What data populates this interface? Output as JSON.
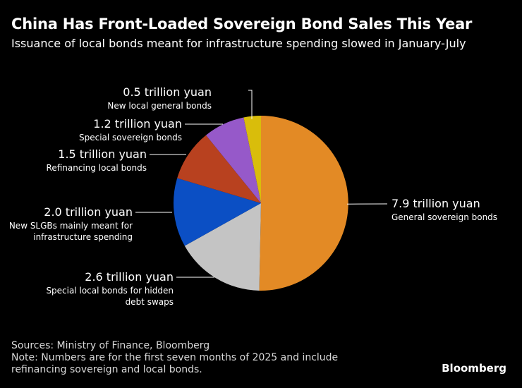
{
  "header": {
    "title": "China Has Front-Loaded Sovereign Bond Sales This Year",
    "subtitle": "Issuance of local bonds meant for infrastructure spending slowed in January-July"
  },
  "chart_data": {
    "type": "pie",
    "title": "China Has Front-Loaded Sovereign Bond Sales This Year",
    "subtitle": "Issuance of local bonds meant for infrastructure spending slowed in January-July",
    "unit": "trillion yuan",
    "slices": [
      {
        "value": 7.9,
        "value_label": "7.9 trillion yuan",
        "label": [
          "General sovereign bonds"
        ],
        "color": "#e38a25"
      },
      {
        "value": 2.6,
        "value_label": "2.6 trillion yuan",
        "label": [
          "Special local bonds for hidden",
          "debt swaps"
        ],
        "color": "#c4c4c4"
      },
      {
        "value": 2.0,
        "value_label": "2.0 trillion yuan",
        "label": [
          "New SLGBs mainly meant for",
          "infrastructure spending"
        ],
        "color": "#0b4fc4"
      },
      {
        "value": 1.5,
        "value_label": "1.5 trillion yuan",
        "label": [
          "Refinancing local bonds"
        ],
        "color": "#b8411f"
      },
      {
        "value": 1.2,
        "value_label": "1.2 trillion yuan",
        "label": [
          "Special sovereign bonds"
        ],
        "color": "#9659c9"
      },
      {
        "value": 0.5,
        "value_label": "0.5 trillion yuan",
        "label": [
          "New local general bonds"
        ],
        "color": "#d9bd0b"
      }
    ]
  },
  "footer": {
    "sources": "Sources: Ministry of Finance, Bloomberg",
    "note_line1": "Note: Numbers are for the first seven months of 2025 and include",
    "note_line2": "refinancing sovereign and local bonds."
  },
  "brand": "Bloomberg"
}
